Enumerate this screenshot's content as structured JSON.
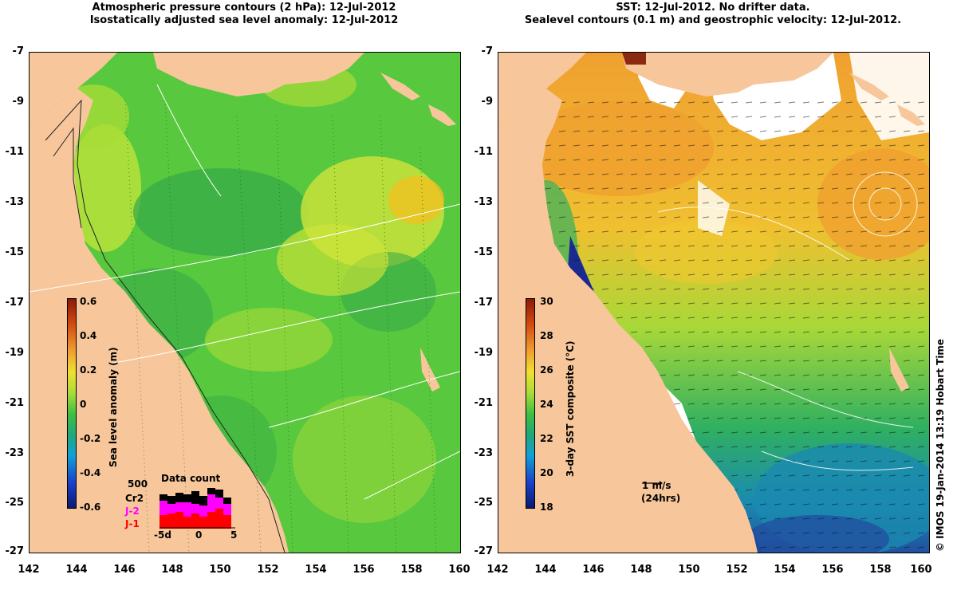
{
  "left_panel": {
    "title_line1": "Atmospheric pressure contours (2 hPa): 12-Jul-2012",
    "title_line2": "Isostatically adjusted sea level anomaly: 12-Jul-2012",
    "colorbar": {
      "label": "Sea level anomaly (m)",
      "ticks": [
        "0.6",
        "0.4",
        "0.2",
        "0",
        "-0.2",
        "-0.4",
        "-0.6"
      ]
    },
    "inset": {
      "title": "Data count",
      "count_label": "500",
      "series_labels": [
        "Cr2",
        "J-2",
        "J-1"
      ],
      "series_colors": [
        "#000000",
        "#ff00ff",
        "#ff0000"
      ],
      "x_ticks": [
        "-5d",
        "0",
        "5"
      ]
    }
  },
  "right_panel": {
    "title_line1": "SST: 12-Jul-2012. No drifter data.",
    "title_line2": "Sealevel contours (0.1 m) and geostrophic velocity: 12-Jul-2012.",
    "colorbar": {
      "label": "3-day SST composite (°C)",
      "ticks": [
        "30",
        "28",
        "26",
        "24",
        "22",
        "20",
        "18"
      ]
    },
    "scale": {
      "label": "1 m/s",
      "sublabel": "(24hrs)"
    }
  },
  "axes": {
    "y_ticks": [
      "-7",
      "-9",
      "-11",
      "-13",
      "-15",
      "-17",
      "-19",
      "-21",
      "-23",
      "-25",
      "-27"
    ],
    "x_ticks": [
      "142",
      "144",
      "146",
      "148",
      "150",
      "152",
      "154",
      "156",
      "158",
      "160"
    ]
  },
  "copyright": "© IMOS 19-Jan-2014 13:19 Hobart Time",
  "colors": {
    "land": "#f7c79b",
    "ocean_green": "#58c83e",
    "sla_high": "#f0c020",
    "sst_warm": "#f0a030",
    "sst_cold": "#102070"
  }
}
